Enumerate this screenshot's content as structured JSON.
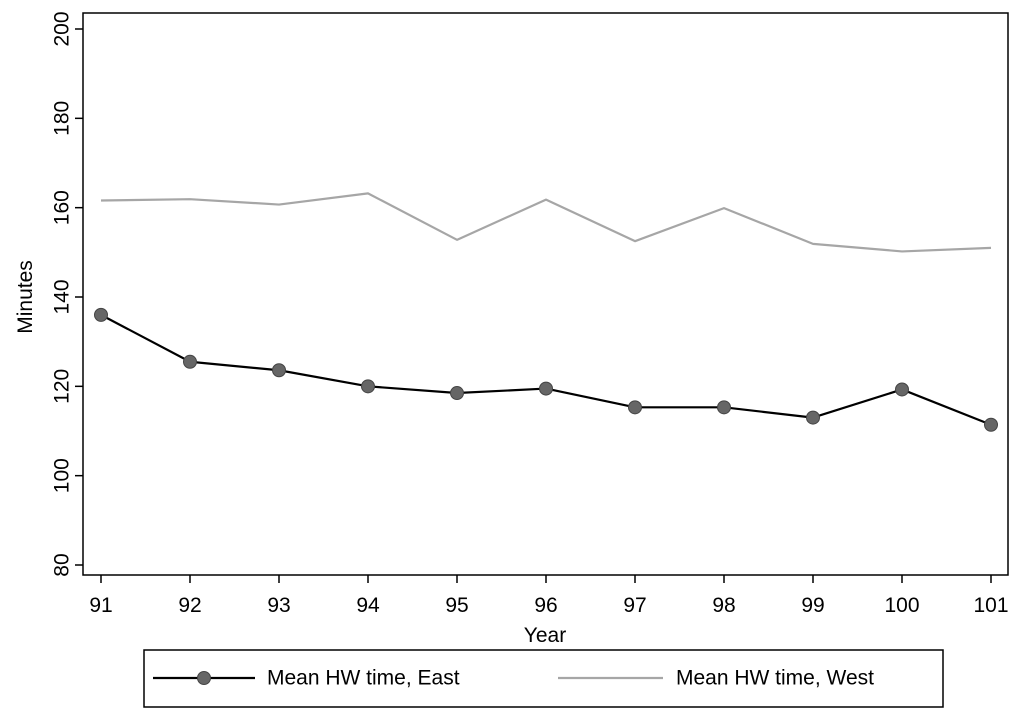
{
  "chart_data": {
    "type": "line",
    "x": [
      91,
      92,
      93,
      94,
      95,
      96,
      97,
      98,
      99,
      100,
      101
    ],
    "x_tick_labels": [
      "91",
      "92",
      "93",
      "94",
      "95",
      "96",
      "97",
      "98",
      "99",
      "100",
      "101"
    ],
    "y_ticks": [
      80,
      100,
      120,
      140,
      160,
      180,
      200
    ],
    "y_tick_labels": [
      "80",
      "100",
      "120",
      "140",
      "160",
      "180",
      "200"
    ],
    "xlabel": "Year",
    "ylabel": "Minutes",
    "xlim": [
      91,
      101
    ],
    "ylim": [
      80,
      200
    ],
    "grid": false,
    "legend_position": "bottom",
    "series": [
      {
        "name": "Mean HW time, East",
        "values": [
          136.0,
          125.5,
          123.6,
          120.0,
          118.5,
          119.5,
          115.3,
          115.3,
          113.0,
          119.3,
          111.4
        ],
        "color": "#000000",
        "marker_color": "#666666",
        "marker": "circle"
      },
      {
        "name": "Mean HW time, West",
        "values": [
          161.6,
          161.9,
          160.7,
          163.2,
          152.8,
          161.8,
          152.5,
          159.9,
          151.9,
          150.2,
          151.0
        ],
        "color": "#a6a6a6",
        "marker": "none"
      }
    ]
  }
}
